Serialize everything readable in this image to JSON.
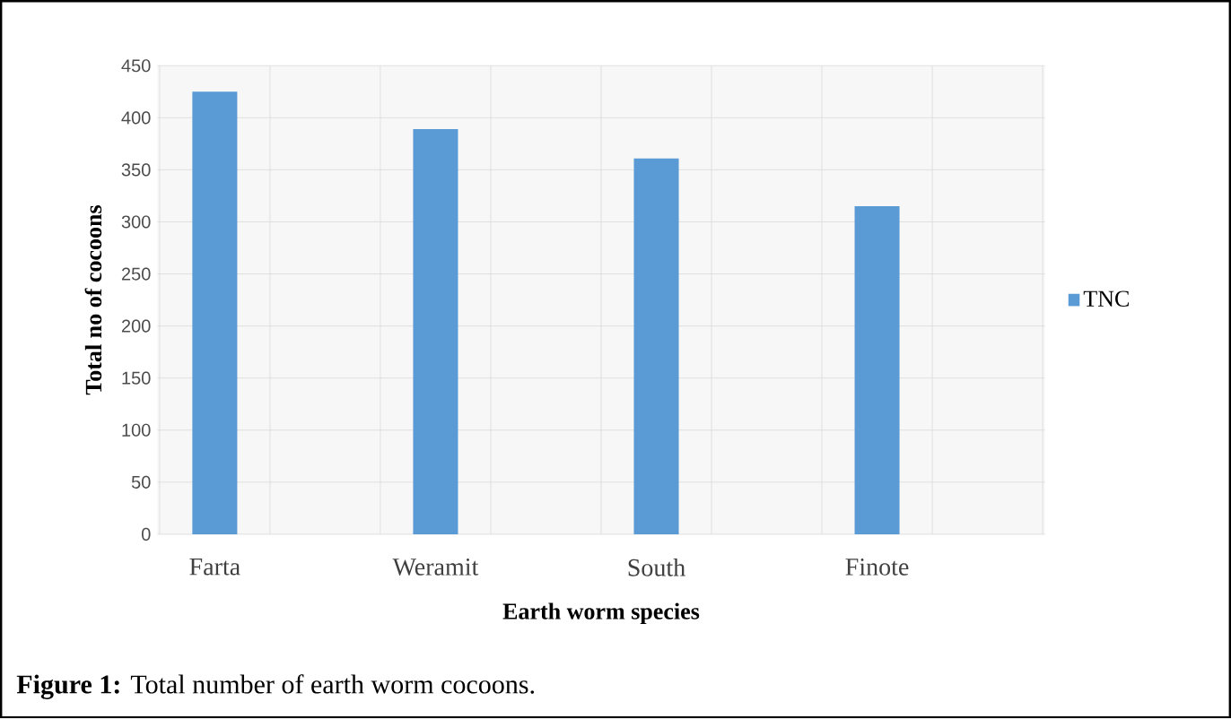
{
  "chart_data": {
    "type": "bar",
    "xlabel": "Earth worm species",
    "ylabel": "Total no of cocoons",
    "categories": [
      "Farta",
      "Weramit",
      "South",
      "Finote"
    ],
    "series": [
      {
        "name": "TNC",
        "color": "#5b9bd5",
        "values": [
          425,
          389,
          361,
          315
        ]
      }
    ],
    "ylim": [
      0,
      450
    ],
    "yticks": [
      0,
      50,
      100,
      150,
      200,
      250,
      300,
      350,
      400,
      450
    ],
    "grid": true,
    "legend": "right",
    "annotations": [
      "**Figure 1:** Total number of earth worm cocoons."
    ]
  }
}
